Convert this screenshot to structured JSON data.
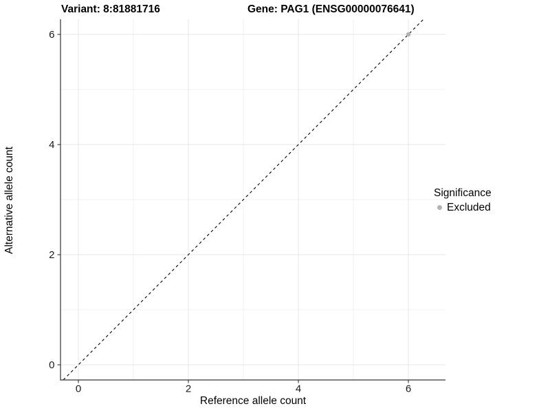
{
  "chart_data": {
    "type": "scatter",
    "titles": [
      "Variant: 8:81881716",
      "Gene: PAG1 (ENSG00000076641)"
    ],
    "xlabel": "Reference allele count",
    "ylabel": "Alternative allele count",
    "xlim": [
      -0.325,
      6.675
    ],
    "ylim": [
      -0.275,
      6.275
    ],
    "xticks": [
      0,
      2,
      4,
      6
    ],
    "yticks": [
      0,
      2,
      4,
      6
    ],
    "minor_xticks": [
      1,
      3,
      5
    ],
    "minor_yticks": [
      1,
      3,
      5
    ],
    "grid": true,
    "identity_line": {
      "style": "dashed",
      "color": "#000000"
    },
    "series": [
      {
        "name": "Excluded",
        "color": "#b3b3b3",
        "points": [
          [
            6,
            6
          ]
        ]
      }
    ],
    "legend": {
      "title": "Significance",
      "position": "right",
      "items": [
        {
          "label": "Excluded",
          "color": "#b3b3b3"
        }
      ]
    },
    "colors": {
      "axis_line": "#333333",
      "major_grid": "#e7e7e7",
      "minor_grid": "#f2f2f2",
      "tick_text": "#1a1a1a",
      "point": "#b3b3b3",
      "background": "#ffffff"
    }
  }
}
